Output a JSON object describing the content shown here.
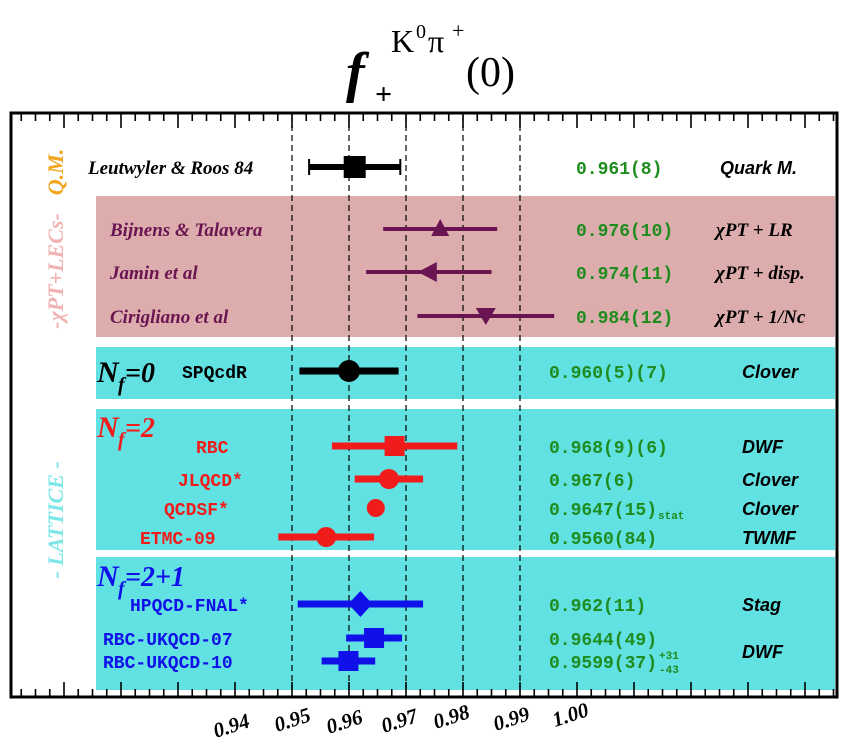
{
  "title": {
    "main": "f",
    "sub": "+",
    "sup": "K",
    "sup_zero": "0",
    "sup_pi": "π",
    "sup_plus": "+",
    "arg": "(0)"
  },
  "colors": {
    "qm_band": "#ffffff",
    "chpt_band": "#dcadac",
    "lattice_band": "#62e1e3",
    "value_green": "#1e8c1e",
    "series_black": "#000000",
    "series_purple": "#6a1452",
    "series_red": "#f21b1b",
    "series_blue": "#1010e8",
    "qm_label": "#f2a51c",
    "chpt_label": "#f2b2b2",
    "lattice_label": "#7ee6e6"
  },
  "side_labels": {
    "qm": "Q.M.",
    "chpt": "-χPT+LECs-",
    "lattice": "- LATTICE -"
  },
  "group_headers": [
    {
      "id": "nf0",
      "base": "N",
      "sub": "f",
      "rest": "=0",
      "color": "#000000"
    },
    {
      "id": "nf2",
      "base": "N",
      "sub": "f",
      "rest": "=2",
      "color": "#f21b1b"
    },
    {
      "id": "nf21",
      "base": "N",
      "sub": "f",
      "rest": "=2+1",
      "color": "#1010e8"
    }
  ],
  "chart_data": {
    "type": "forest",
    "title": "f+K0π+(0)",
    "xlim": [
      0.9295,
      1.0825
    ],
    "x_ticks": [
      0.94,
      0.95,
      0.96,
      0.97,
      0.98,
      0.99,
      1.0
    ],
    "x_tick_labels": [
      "0.94",
      "0.95",
      "0.96",
      "0.97",
      "0.98",
      "0.99",
      "1.00"
    ],
    "dashed_lines": [
      0.95,
      0.96,
      0.97,
      0.98,
      0.99
    ],
    "points": [
      {
        "label": "Leutwyler & Roos 84",
        "value": 0.961,
        "lo": 0.953,
        "hi": 0.969,
        "value_text": "0.961(8)",
        "method": "Quark M.",
        "marker": "square",
        "color": "#000000",
        "label_style": "serif",
        "method_style": "sans"
      },
      {
        "label": "Bijnens & Talavera",
        "value": 0.976,
        "lo": 0.966,
        "hi": 0.986,
        "value_text": "0.976(10)",
        "method": "χPT + LR",
        "marker": "triangle-up",
        "color": "#6a1452",
        "label_style": "serif",
        "method_style": "serif"
      },
      {
        "label": "Jamin et al",
        "value": 0.974,
        "lo": 0.963,
        "hi": 0.985,
        "value_text": "0.974(11)",
        "method": "χPT + disp.",
        "marker": "triangle-left",
        "color": "#6a1452",
        "label_style": "serif",
        "method_style": "serif"
      },
      {
        "label": "Cirigliano et al",
        "value": 0.984,
        "lo": 0.972,
        "hi": 0.996,
        "value_text": "0.984(12)",
        "method": "χPT + 1/Nc",
        "marker": "triangle-down",
        "color": "#6a1452",
        "label_style": "serif",
        "method_style": "serif"
      },
      {
        "label": "SPQcdR",
        "value": 0.96,
        "lo": 0.9513,
        "hi": 0.9687,
        "value_text": "0.960(5)(7)",
        "method": "Clover",
        "marker": "circle",
        "color": "#000000",
        "label_style": "mono",
        "method_style": "sans"
      },
      {
        "label": "RBC",
        "value": 0.968,
        "lo": 0.957,
        "hi": 0.979,
        "value_text": "0.968(9)(6)",
        "method": "DWF",
        "marker": "square",
        "color": "#f21b1b",
        "label_style": "mono",
        "method_style": "sans"
      },
      {
        "label": "JLQCD*",
        "value": 0.967,
        "lo": 0.961,
        "hi": 0.973,
        "value_text": "0.967(6)",
        "method": "Clover",
        "marker": "circle",
        "color": "#f21b1b",
        "label_style": "mono",
        "method_style": "sans"
      },
      {
        "label": "QCDSF*",
        "value": 0.9647,
        "lo": 0.9632,
        "hi": 0.9662,
        "value_text": "0.9647(15)",
        "value_sub": "stat",
        "method": "Clover",
        "marker": "circle",
        "color": "#f21b1b",
        "label_style": "mono",
        "method_style": "sans"
      },
      {
        "label": "ETMC-09",
        "value": 0.956,
        "lo": 0.9476,
        "hi": 0.9644,
        "value_text": "0.9560(84)",
        "method": "TWMF",
        "marker": "circle",
        "color": "#f21b1b",
        "label_style": "mono",
        "method_style": "sans"
      },
      {
        "label": "HPQCD-FNAL*",
        "value": 0.962,
        "lo": 0.951,
        "hi": 0.973,
        "value_text": "0.962(11)",
        "method": "Stag",
        "marker": "diamond",
        "color": "#1010e8",
        "label_style": "mono",
        "method_style": "sans"
      },
      {
        "label": "RBC-UKQCD-07",
        "value": 0.9644,
        "lo": 0.9595,
        "hi": 0.9693,
        "value_text": "0.9644(49)",
        "method": "DWF",
        "marker": "square",
        "color": "#1010e8",
        "label_style": "mono",
        "method_style": "sans"
      },
      {
        "label": "RBC-UKQCD-10",
        "value": 0.9599,
        "lo": 0.9552,
        "hi": 0.9646,
        "value_text": "0.9599(37)",
        "value_sup": "+31",
        "value_sub": "-43",
        "method": "",
        "marker": "square",
        "color": "#1010e8",
        "label_style": "mono",
        "method_style": "sans"
      }
    ],
    "grid": false,
    "legend": "none"
  }
}
